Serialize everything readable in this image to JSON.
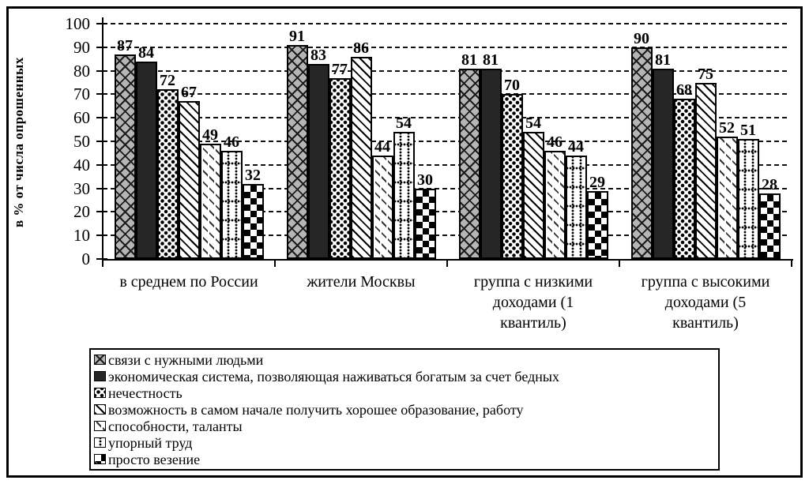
{
  "y_axis": {
    "title": "в % от числа опрошенных"
  },
  "chart_data": {
    "type": "bar",
    "title": "",
    "xlabel": "",
    "ylabel": "в % от числа опрошенных",
    "ylim": [
      0,
      100
    ],
    "yticks": [
      0,
      10,
      20,
      30,
      40,
      50,
      60,
      70,
      80,
      90,
      100
    ],
    "grid": "dashed-horizontal",
    "legend_position": "bottom-box",
    "value_labels": "above-bars",
    "colors": {
      "foreground": "#000000",
      "background": "#ffffff",
      "gray_fill": "#b5b5b5",
      "dark_fill": "#262626"
    },
    "categories": [
      "в среднем по России",
      "жители Москвы",
      "группа с низкими доходами (1 квантиль)",
      "группа с высокими доходами (5 квантиль)"
    ],
    "series": [
      {
        "name": "связи с нужными людьми",
        "pattern": "diagonal-crosshatch-gray",
        "values": [
          87,
          91,
          81,
          90
        ]
      },
      {
        "name": "экономическая система, позволяющая наживаться богатым за счет бедных",
        "pattern": "solid-dark",
        "values": [
          84,
          83,
          81,
          81
        ]
      },
      {
        "name": "нечестность",
        "pattern": "black-dots",
        "values": [
          72,
          77,
          70,
          68
        ]
      },
      {
        "name": "возможность в самом начале получить хорошее образование, работу",
        "pattern": "diagonal-lines",
        "values": [
          67,
          86,
          54,
          75
        ]
      },
      {
        "name": "способности, таланты",
        "pattern": "sparse-diagonal-dashes",
        "values": [
          49,
          44,
          46,
          52
        ]
      },
      {
        "name": "упорный труд",
        "pattern": "dotted-grid",
        "values": [
          46,
          54,
          44,
          51
        ]
      },
      {
        "name": "просто везение",
        "pattern": "black-diamonds",
        "values": [
          32,
          30,
          29,
          28
        ]
      }
    ]
  }
}
